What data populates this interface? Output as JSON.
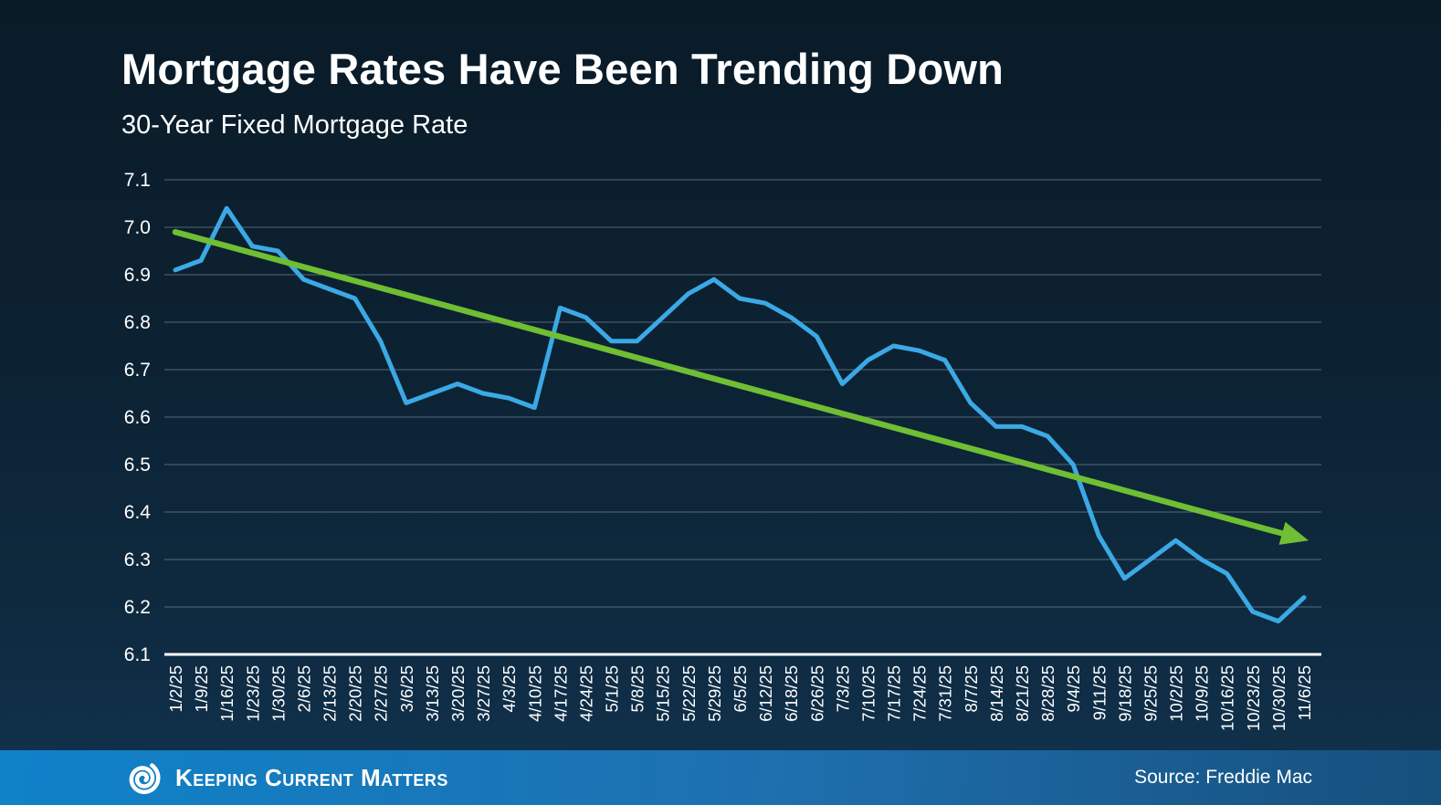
{
  "header": {
    "title": "Mortgage Rates Have Been Trending Down",
    "subtitle": "30-Year Fixed Mortgage Rate"
  },
  "footer": {
    "brand": "Keeping Current Matters",
    "source": "Source: Freddie Mac"
  },
  "chart_data": {
    "type": "line",
    "title": "30-Year Fixed Mortgage Rate",
    "categories": [
      "1/2/25",
      "1/9/25",
      "1/16/25",
      "1/23/25",
      "1/30/25",
      "2/6/25",
      "2/13/25",
      "2/20/25",
      "2/27/25",
      "3/6/25",
      "3/13/25",
      "3/20/25",
      "3/27/25",
      "4/3/25",
      "4/10/25",
      "4/17/25",
      "4/24/25",
      "5/1/25",
      "5/8/25",
      "5/15/25",
      "5/22/25",
      "5/29/25",
      "6/5/25",
      "6/12/25",
      "6/18/25",
      "6/26/25",
      "7/3/25",
      "7/10/25",
      "7/17/25",
      "7/24/25",
      "7/31/25",
      "8/7/25",
      "8/14/25",
      "8/21/25",
      "8/28/25",
      "9/4/25",
      "9/11/25",
      "9/18/25",
      "9/25/25",
      "10/2/25",
      "10/9/25",
      "10/16/25",
      "10/23/25",
      "10/30/25",
      "11/6/25"
    ],
    "series": [
      {
        "name": "30-Year Fixed Mortgage Rate",
        "color": "#3ba9e5",
        "values": [
          6.91,
          6.93,
          7.04,
          6.96,
          6.95,
          6.89,
          6.87,
          6.85,
          6.76,
          6.63,
          6.65,
          6.67,
          6.65,
          6.64,
          6.62,
          6.83,
          6.81,
          6.76,
          6.76,
          6.81,
          6.86,
          6.89,
          6.85,
          6.84,
          6.81,
          6.77,
          6.67,
          6.72,
          6.75,
          6.74,
          6.72,
          6.63,
          6.58,
          6.58,
          6.56,
          6.5,
          6.35,
          6.26,
          6.3,
          6.34,
          6.3,
          6.27,
          6.19,
          6.17,
          6.22
        ]
      }
    ],
    "trend_line": {
      "color": "#6fbe33",
      "start_value": 6.99,
      "end_value": 6.34,
      "style": "arrow-down-right"
    },
    "ylim": [
      6.1,
      7.1
    ],
    "y_ticks": [
      7.1,
      7.0,
      6.9,
      6.8,
      6.7,
      6.6,
      6.5,
      6.4,
      6.3,
      6.2,
      6.1
    ],
    "grid": "horizontal",
    "legend": "none",
    "xlabel": "",
    "ylabel": "",
    "colors": {
      "axis_text": "#ffffff",
      "gridline": "#8fa3b0",
      "axis_line": "#ffffff"
    }
  }
}
